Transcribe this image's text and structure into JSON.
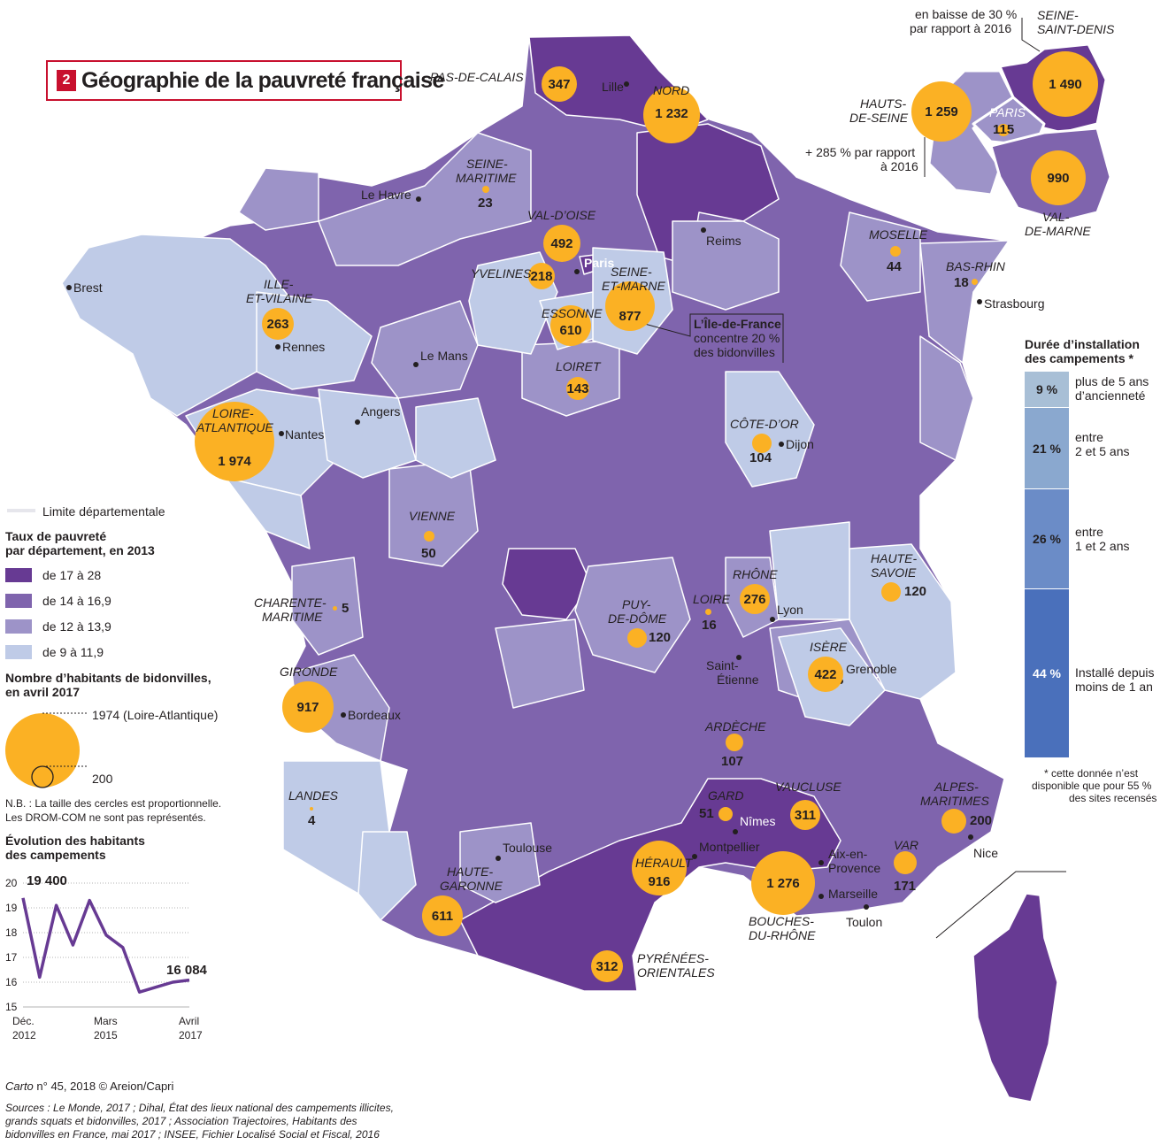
{
  "title": {
    "number": "2",
    "text": "Géographie de la pauvreté française"
  },
  "colors": {
    "class1": "#673a93",
    "class2": "#7f64ad",
    "class3": "#9d93c8",
    "class4": "#bfcbe7",
    "bubble": "#fbb124",
    "accent": "#c8102e"
  },
  "legend": {
    "border_label": "Limite départementale",
    "poverty_title_1": "Taux de pauvreté",
    "poverty_title_2": "par département, en 2013",
    "classes": [
      "de 17 à 28",
      "de 14 à 16,9",
      "de 12 à 13,9",
      "de 9 à 11,9"
    ],
    "bubble_title_1": "Nombre d’habitants de bidonvilles,",
    "bubble_title_2": "en avril 2017",
    "bubble_big_label": "1974 (Loire-Atlantique)",
    "bubble_small_label": "200",
    "note_1": "N.B. : La taille des cercles est proportionnelle.",
    "note_2": "Les DROM-COM ne sont pas représentés."
  },
  "evolution": {
    "title_1": "Évolution des habitants",
    "title_2": "des campements",
    "y_ticks": [
      "20",
      "19",
      "18",
      "17",
      "16",
      "15"
    ],
    "x_labels": [
      [
        "Déc.",
        "2012"
      ],
      [
        "Mars",
        "2015"
      ],
      [
        "Avril",
        "2017"
      ]
    ],
    "start_label": "19 400",
    "end_label": "16 084"
  },
  "chart_data": {
    "type": "line",
    "title": "Évolution des habitants des campements",
    "unit": "milliers",
    "x": [
      "Déc. 2012",
      "2013",
      "2013",
      "2014",
      "2014",
      "Mars 2015",
      "2015",
      "2016",
      "2016",
      "2017",
      "Avril 2017"
    ],
    "values": [
      19.4,
      16.2,
      19.1,
      17.5,
      19.3,
      17.9,
      17.4,
      15.6,
      15.8,
      16.0,
      16.084
    ],
    "ylim": [
      15,
      20
    ]
  },
  "duration": {
    "title_1": "Durée d’installation",
    "title_2": "des campements *",
    "segments": [
      {
        "pct": "9 %",
        "label_1": "plus de 5 ans",
        "label_2": "d’ancienneté",
        "color": "#a8bfd6"
      },
      {
        "pct": "21 %",
        "label_1": "entre",
        "label_2": "2 et 5 ans",
        "color": "#8aa8cf"
      },
      {
        "pct": "26 %",
        "label_1": "entre",
        "label_2": "1 et 2 ans",
        "color": "#6b8cc7"
      },
      {
        "pct": "44 %",
        "label_1": "Installé depuis",
        "label_2": "moins de 1 an",
        "color": "#4a70bb"
      }
    ],
    "footnote_1": "* cette donnée n’est",
    "footnote_2": "disponible que pour 55 %",
    "footnote_3": "des sites recensés"
  },
  "idf_inset": {
    "note_seine_saint_denis_1": "en baisse de 30 %",
    "note_seine_saint_denis_2": "par rapport à 2016",
    "note_hauts_de_seine_1": "+ 285 % par rapport",
    "note_hauts_de_seine_2": "à 2016",
    "idf_note_1": "L’Île-de-France",
    "idf_note_2": "concentre 20 %",
    "idf_note_3": "des bidonvilles"
  },
  "bubbles": {
    "pas_de_calais": "347",
    "nord": "1 232",
    "seine_maritime": "23",
    "val_d_oise": "492",
    "yvelines": "218",
    "essonne": "610",
    "seine_et_marne": "877",
    "loiret": "143",
    "ille_et_vilaine": "263",
    "loire_atlantique": "1 974",
    "vienne": "50",
    "charente_maritime": "5",
    "gironde": "917",
    "landes": "4",
    "haute_garonne": "611",
    "pyrenees_orientales": "312",
    "herault": "916",
    "gard": "51",
    "vaucluse": "311",
    "bouches_du_rhone": "1 276",
    "var": "171",
    "alpes_maritimes": "200",
    "isere": "422",
    "haute_savoie": "120",
    "rhone": "276",
    "loire": "16",
    "puy_de_dome": "120",
    "ardeche": "107",
    "cote_d_or": "104",
    "moselle": "44",
    "bas_rhin": "18",
    "hauts_de_seine": "1 259",
    "seine_saint_denis": "1 490",
    "paris": "115",
    "val_de_marne": "990"
  },
  "depts": {
    "pas_de_calais": "PAS-DE-CALAIS",
    "nord": "NORD",
    "seine_maritime_1": "SEINE-",
    "seine_maritime_2": "MARITIME",
    "val_d_oise": "VAL-D’OISE",
    "yvelines": "YVELINES",
    "essonne": "ESSONNE",
    "seine_et_marne_1": "SEINE-",
    "seine_et_marne_2": "ET-MARNE",
    "loiret": "LOIRET",
    "ille_et_vilaine_1": "ILLE-",
    "ille_et_vilaine_2": "ET-VILAINE",
    "loire_atlantique_1": "LOIRE-",
    "loire_atlantique_2": "ATLANTIQUE",
    "vienne": "VIENNE",
    "charente_maritime_1": "CHARENTE-",
    "charente_maritime_2": "MARITIME",
    "gironde": "GIRONDE",
    "landes": "LANDES",
    "haute_garonne_1": "HAUTE-",
    "haute_garonne_2": "GARONNE",
    "pyrenees_1": "PYRÉNÉES-",
    "pyrenees_2": "ORIENTALES",
    "herault": "HÉRAULT",
    "gard": "GARD",
    "vaucluse": "VAUCLUSE",
    "bouches_1": "BOUCHES-",
    "bouches_2": "DU-RHÔNE",
    "var": "VAR",
    "alpes_maritimes_1": "ALPES-",
    "alpes_maritimes_2": "MARITIMES",
    "isere": "ISÈRE",
    "haute_savoie_1": "HAUTE-",
    "haute_savoie_2": "SAVOIE",
    "rhone": "RHÔNE",
    "loire": "LOIRE",
    "puy_de_dome_1": "PUY-",
    "puy_de_dome_2": "DE-DÔME",
    "ardeche": "ARDÈCHE",
    "cote_d_or": "CÔTE-D’OR",
    "moselle": "MOSELLE",
    "bas_rhin": "BAS-RHIN",
    "hauts_de_seine_1": "HAUTS-",
    "hauts_de_seine_2": "DE-SEINE",
    "seine_saint_denis_1": "SEINE-",
    "seine_saint_denis_2": "SAINT-DENIS",
    "paris": "PARIS",
    "val_de_marne_1": "VAL-",
    "val_de_marne_2": "DE-MARNE"
  },
  "cities": {
    "lille": "Lille",
    "le_havre": "Le Havre",
    "reims": "Reims",
    "paris": "Paris",
    "brest": "Brest",
    "rennes": "Rennes",
    "le_mans": "Le Mans",
    "angers": "Angers",
    "nantes": "Nantes",
    "dijon": "Dijon",
    "strasbourg": "Strasbourg",
    "lyon": "Lyon",
    "saint_etienne_1": "Saint-",
    "saint_etienne_2": "Étienne",
    "grenoble": "Grenoble",
    "bordeaux": "Bordeaux",
    "toulouse": "Toulouse",
    "nimes": "Nîmes",
    "montpellier": "Montpellier",
    "aix_1": "Aix-en-",
    "aix_2": "Provence",
    "marseille": "Marseille",
    "toulon": "Toulon",
    "nice": "Nice"
  },
  "credits": {
    "carto_1": "Carto",
    "carto_2": " n° 45, 2018 © Areion/Capri",
    "sources_1": "Sources : Le Monde, 2017 ; Dihal, État des lieux national des campements illicites,",
    "sources_2": "grands squats et bidonvilles, 2017 ; Association Trajectoires, Habitants des",
    "sources_3": "bidonvilles en France, mai 2017 ; INSEE, Fichier Localisé Social et Fiscal, 2016"
  }
}
